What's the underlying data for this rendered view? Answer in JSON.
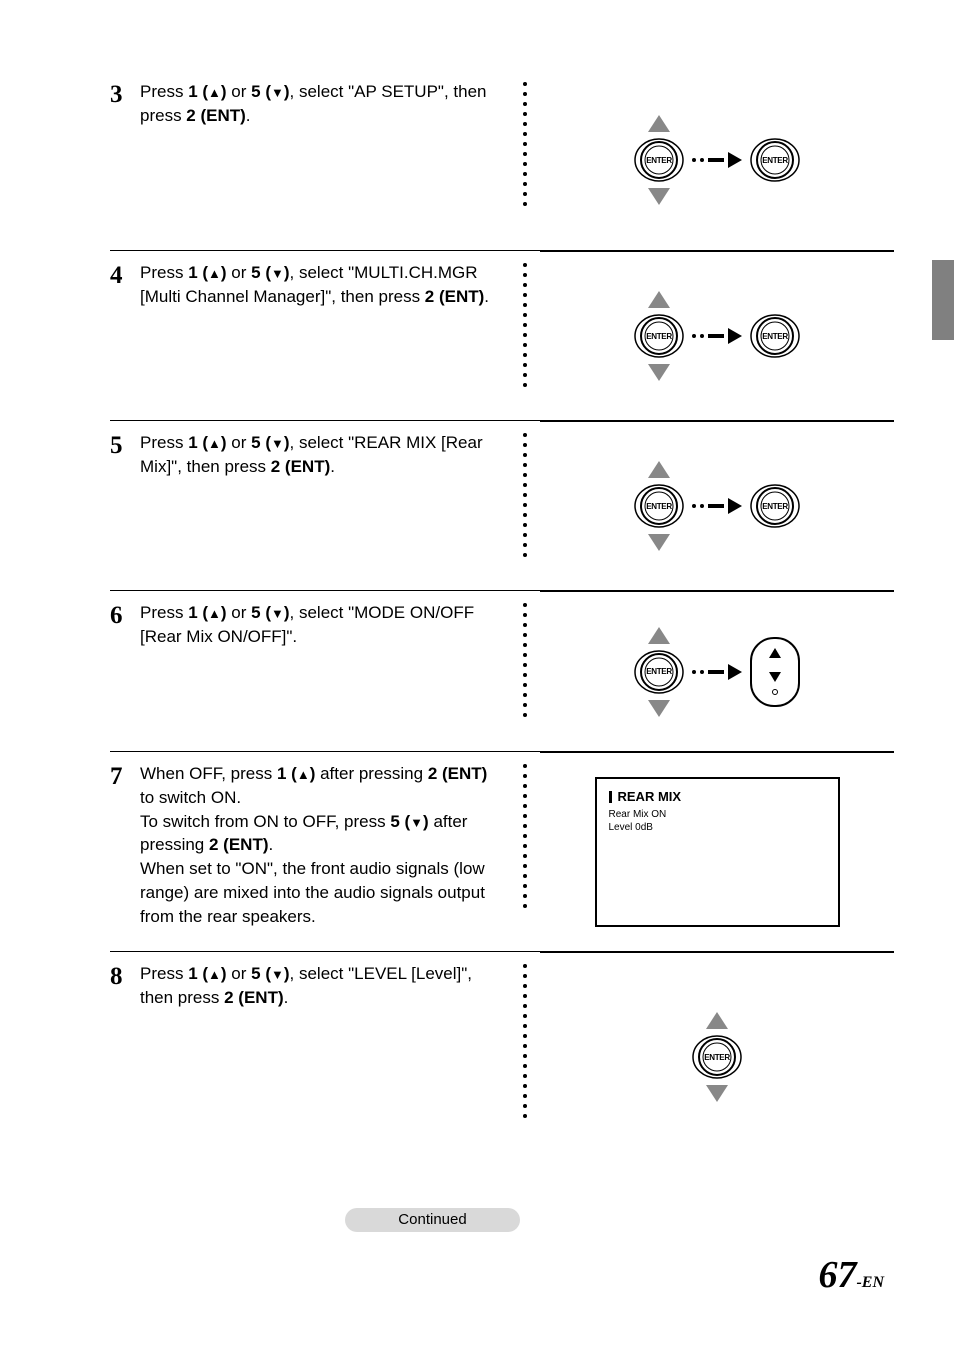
{
  "steps": [
    {
      "num": "3",
      "html": "Press <b>1 (<span class='tri-inline'>▲</span>)</b> or <b>5 (<span class='tri-inline'>▼</span>)</b>, select \"AP SETUP\", then press <b>2 (ENT)</b>.",
      "graphic": "nav-enter-enter"
    },
    {
      "num": "4",
      "html": "Press <b>1 (<span class='tri-inline'>▲</span>)</b> or <b>5 (<span class='tri-inline'>▼</span>)</b>, select \"MULTI.CH.MGR [Multi Channel Manager]\", then press <b>2 (ENT)</b>.",
      "graphic": "nav-enter-enter"
    },
    {
      "num": "5",
      "html": "Press <b>1 (<span class='tri-inline'>▲</span>)</b> or <b>5 (<span class='tri-inline'>▼</span>)</b>, select \"REAR MIX [Rear Mix]\", then press <b>2 (ENT)</b>.",
      "graphic": "nav-enter-enter"
    },
    {
      "num": "6",
      "html": "Press <b>1 (<span class='tri-inline'>▲</span>)</b> or <b>5 (<span class='tri-inline'>▼</span>)</b>, select \"MODE ON/OFF [Rear Mix ON/OFF]\".",
      "graphic": "nav-enter-disc"
    },
    {
      "num": "7",
      "html": "When OFF, press <b>1 (<span class='tri-inline'>▲</span>)</b> after pressing <b>2 (ENT)</b> to switch ON.<br>To switch from ON to OFF, press <b>5 (<span class='tri-inline'>▼</span>)</b> after pressing <b>2 (ENT)</b>.<br>When set to \"ON\", the front audio signals (low range) are mixed into the audio signals output from the rear speakers.",
      "graphic": "screen"
    },
    {
      "num": "8",
      "html": "Press <b>1 (<span class='tri-inline'>▲</span>)</b> or <b>5 (<span class='tri-inline'>▼</span>)</b>, select \"LEVEL [Level]\", then press <b>2 (ENT)</b>.",
      "graphic": "nav-enter-only"
    }
  ],
  "screen": {
    "title": "REAR  MIX",
    "line1": "Rear Mix ON",
    "line2": "Level 0dB"
  },
  "continued": "Continued",
  "pagenum": "67",
  "pagesuffix": "-EN",
  "enter_label": "ENTER",
  "arrow_color": "#888888"
}
